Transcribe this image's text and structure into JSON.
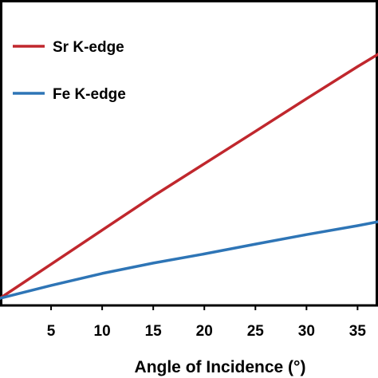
{
  "chart_data": {
    "type": "line",
    "title": "",
    "xlabel": "Angle of Incidence (°)",
    "ylabel": "",
    "xlim": [
      0,
      37
    ],
    "x_ticks": [
      "5",
      "10",
      "15",
      "20",
      "25",
      "30",
      "35"
    ],
    "grid": false,
    "legend_position": "top-left",
    "series": [
      {
        "name": "Sr K-edge",
        "color": "#c0272d",
        "x": [
          0,
          5,
          10,
          15,
          20,
          25,
          30,
          35,
          37
        ],
        "y": [
          0,
          0.122,
          0.244,
          0.366,
          0.482,
          0.598,
          0.715,
          0.83,
          0.874
        ]
      },
      {
        "name": "Fe K-edge",
        "color": "#2e75b6",
        "x": [
          0,
          5,
          10,
          15,
          20,
          25,
          30,
          35,
          37
        ],
        "y": [
          0,
          0.046,
          0.089,
          0.126,
          0.159,
          0.194,
          0.228,
          0.26,
          0.274
        ]
      }
    ]
  }
}
